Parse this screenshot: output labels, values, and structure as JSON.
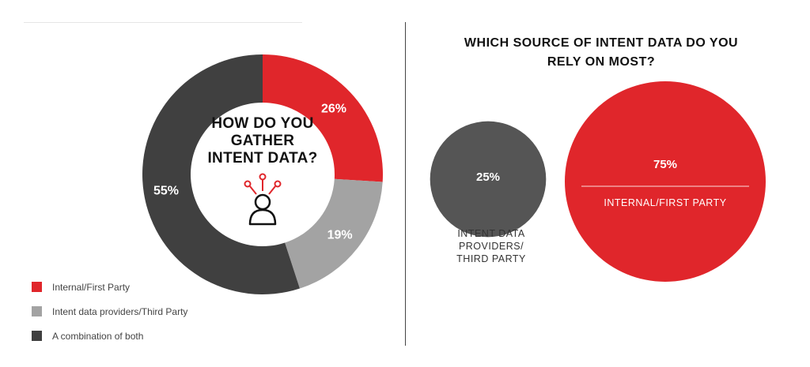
{
  "left_panel": {
    "center_title_lines": [
      "HOW DO YOU",
      "GATHER",
      "INTENT DATA?"
    ],
    "legend": [
      {
        "label": "Internal/First Party",
        "color": "#e0262b"
      },
      {
        "label": "Intent data providers/Third Party",
        "color": "#a3a3a3"
      },
      {
        "label": "A combination of both",
        "color": "#404040"
      }
    ]
  },
  "right_panel": {
    "title_lines": [
      "WHICH SOURCE OF INTENT DATA DO YOU",
      "RELY ON MOST?"
    ],
    "small_caption_lines": [
      "INTENT DATA",
      "PROVIDERS/",
      "THIRD PARTY"
    ],
    "large_caption": "INTERNAL/FIRST PARTY"
  },
  "chart_data": [
    {
      "type": "pie",
      "title": "HOW DO YOU GATHER INTENT DATA?",
      "categories": [
        "Internal/First Party",
        "Intent data providers/Third Party",
        "A combination of both"
      ],
      "values": [
        26,
        19,
        55
      ],
      "labels": [
        "26%",
        "19%",
        "55%"
      ],
      "colors": [
        "#e0262b",
        "#a3a3a3",
        "#404040"
      ],
      "legend": "bottom-left"
    },
    {
      "type": "bubble",
      "title": "WHICH SOURCE OF INTENT DATA DO YOU RELY ON MOST?",
      "categories": [
        "INTENT DATA PROVIDERS/ THIRD PARTY",
        "INTERNAL/FIRST PARTY"
      ],
      "values": [
        25,
        75
      ],
      "labels": [
        "25%",
        "75%"
      ],
      "colors": [
        "#555555",
        "#e0262b"
      ]
    }
  ]
}
